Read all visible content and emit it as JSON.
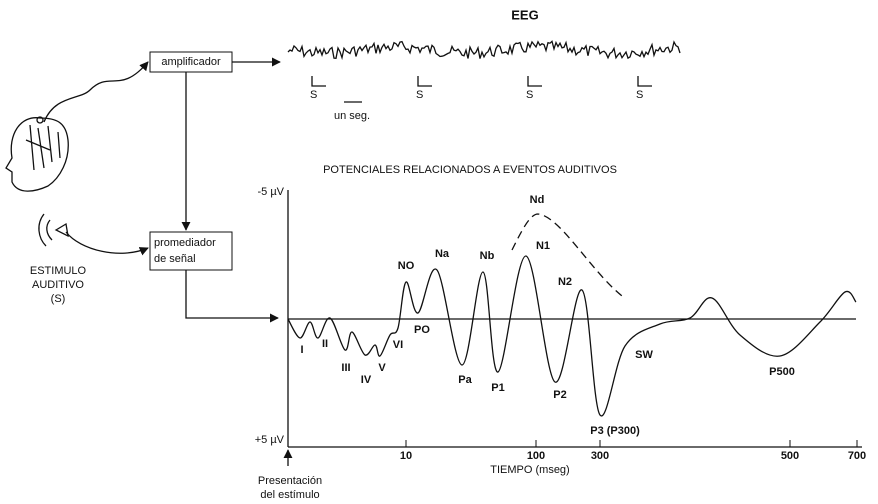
{
  "title": "EEG",
  "boxes": {
    "amplifier": "amplificador",
    "averager": [
      "promediador",
      "de señal"
    ]
  },
  "eeg": {
    "stimulus_marks": [
      "S",
      "S",
      "S",
      "S"
    ],
    "scale": "un seg."
  },
  "stimulus": [
    "ESTIMULO",
    "AUDITIVO",
    "(S)"
  ],
  "erp": {
    "title": "POTENCIALES RELACIONADOS A EVENTOS AUDITIVOS",
    "y_top": "-5 µV",
    "y_bottom": "+5 µV",
    "x_ticks": [
      10,
      100,
      300,
      500,
      700
    ],
    "x_label": "TIEMPO (mseg)",
    "origin_label": [
      "Presentación",
      "del estímulo"
    ],
    "peaks": [
      "I",
      "II",
      "III",
      "IV",
      "V",
      "VI",
      "NO",
      "PO",
      "Na",
      "Pa",
      "Nb",
      "P1",
      "Nd",
      "N1",
      "N2",
      "P2",
      "P3 (P300)",
      "SW",
      "P500"
    ]
  }
}
